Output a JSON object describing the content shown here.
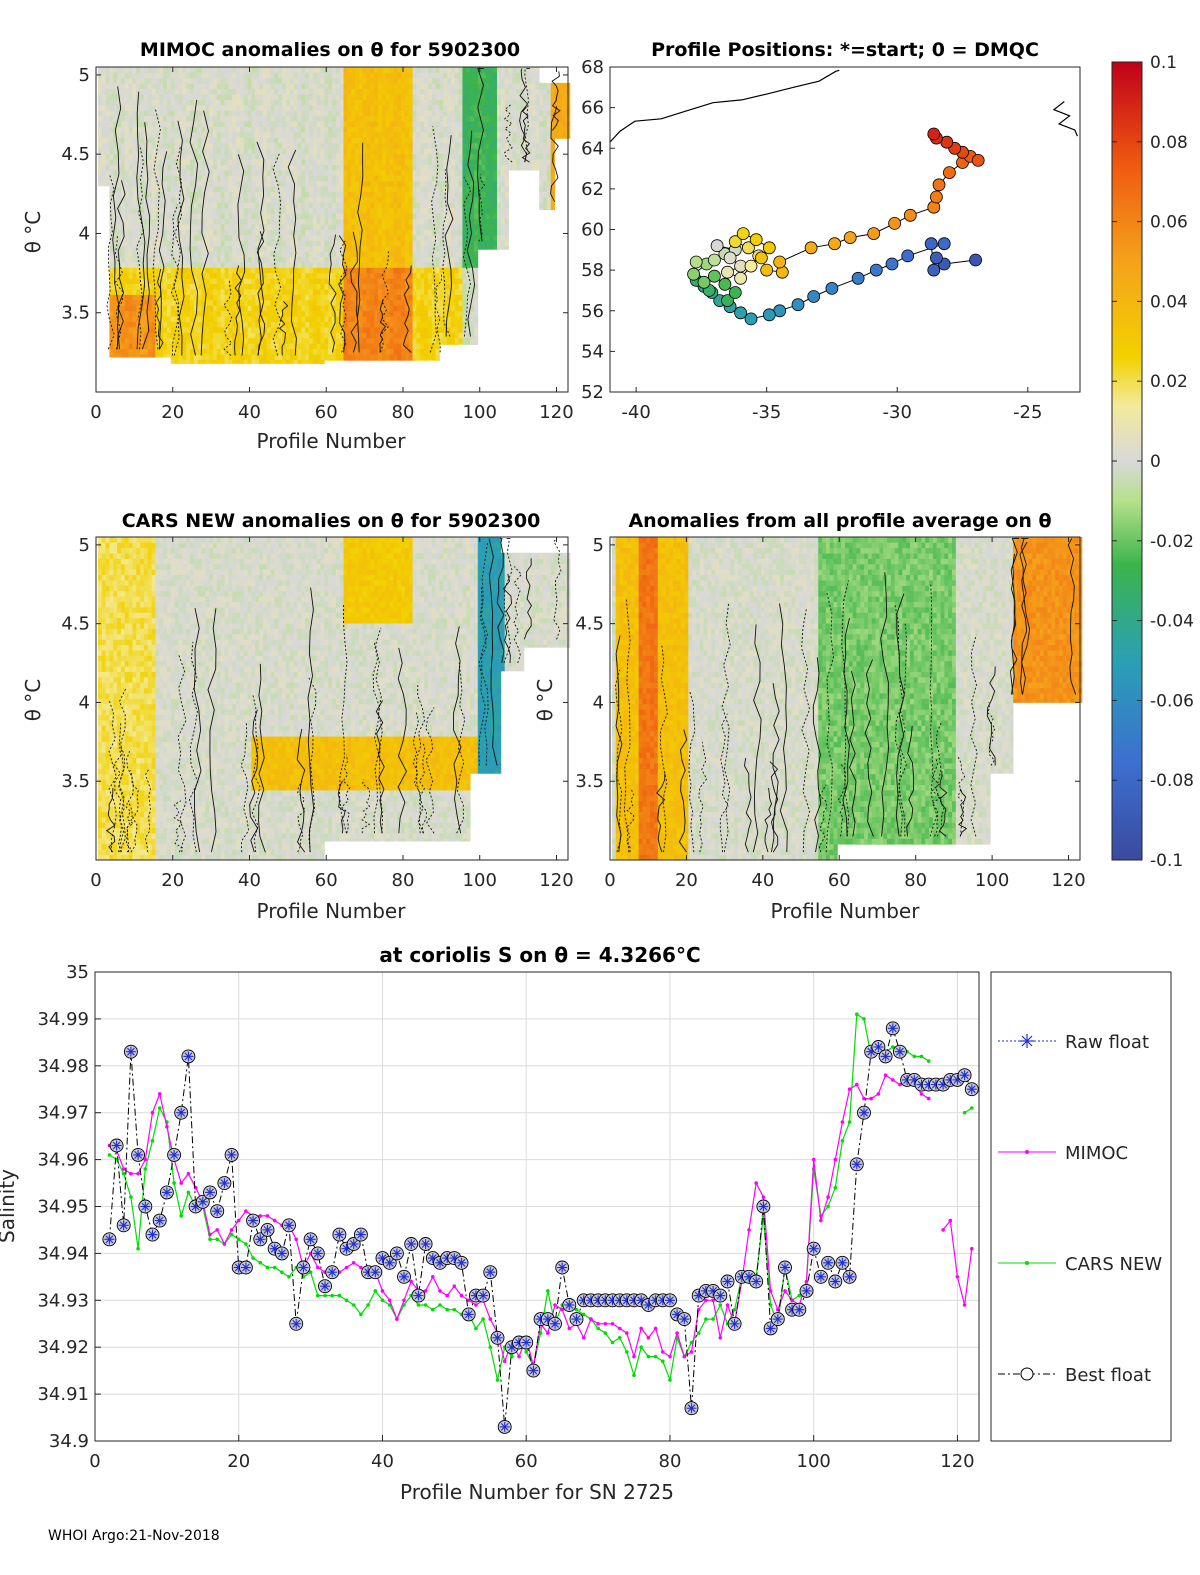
{
  "footer": "WHOI Argo:21-Nov-2018",
  "panel_mimoc": {
    "title": "MIMOC anomalies on θ  for 5902300",
    "xlabel": "Profile Number",
    "ylabel": "θ °C",
    "xticks": [
      0,
      20,
      40,
      60,
      80,
      100,
      120
    ],
    "yticks": [
      3.5,
      4,
      4.5,
      5
    ],
    "xlim": [
      0,
      123
    ],
    "ylim": [
      3.0,
      5.05
    ]
  },
  "panel_positions": {
    "title": "Profile Positions: *=start; 0 = DMQC",
    "xticks": [
      -40,
      -35,
      -30,
      -25
    ],
    "yticks": [
      52,
      54,
      56,
      58,
      60,
      62,
      64,
      66,
      68
    ],
    "xlim": [
      -41,
      -23
    ],
    "ylim": [
      52,
      68
    ]
  },
  "panel_cars": {
    "title": "CARS NEW anomalies on θ for 5902300",
    "xlabel": "Profile Number",
    "ylabel": "θ °C",
    "xticks": [
      0,
      20,
      40,
      60,
      80,
      100,
      120
    ],
    "yticks": [
      3.5,
      4,
      4.5,
      5
    ],
    "xlim": [
      0,
      123
    ],
    "ylim": [
      3.0,
      5.05
    ]
  },
  "panel_allavg": {
    "title": "Anomalies from all profile average on θ",
    "xlabel": "Profile Number",
    "ylabel": "θ °C",
    "xticks": [
      0,
      20,
      40,
      60,
      80,
      100,
      120
    ],
    "yticks": [
      3.5,
      4,
      4.5,
      5
    ],
    "xlim": [
      0,
      123
    ],
    "ylim": [
      3.0,
      5.05
    ]
  },
  "colorbar": {
    "ticks": [
      "0.1",
      "0.08",
      "0.06",
      "0.04",
      "0.02",
      "0",
      "-0.02",
      "-0.04",
      "-0.06",
      "-0.08",
      "-0.1"
    ],
    "range": [
      -0.1,
      0.1
    ]
  },
  "chart_data": {
    "type": "line",
    "title": "at coriolis S on θ = 4.3266°C",
    "xlabel": "Profile Number for SN 2725",
    "ylabel": "Salinity",
    "xlim": [
      0,
      123
    ],
    "ylim": [
      34.9,
      35
    ],
    "xticks": [
      0,
      20,
      40,
      60,
      80,
      100,
      120
    ],
    "yticks": [
      "34.9",
      "34.91",
      "34.92",
      "34.93",
      "34.94",
      "34.95",
      "34.96",
      "34.97",
      "34.98",
      "34.99",
      "35"
    ],
    "legend": [
      "Raw float",
      "MIMOC",
      "CARS NEW",
      "Best float"
    ],
    "series": [
      {
        "name": "Best float",
        "color": "#000000",
        "x": [
          2,
          3,
          4,
          5,
          6,
          7,
          8,
          9,
          10,
          11,
          12,
          13,
          14,
          15,
          16,
          17,
          18,
          19,
          20,
          21,
          22,
          23,
          24,
          25,
          26,
          27,
          28,
          29,
          30,
          31,
          32,
          33,
          34,
          35,
          36,
          37,
          38,
          39,
          40,
          41,
          42,
          43,
          44,
          45,
          46,
          47,
          48,
          49,
          50,
          51,
          52,
          53,
          54,
          55,
          56,
          57,
          58,
          59,
          60,
          61,
          62,
          63,
          64,
          65,
          66,
          67,
          68,
          69,
          70,
          71,
          72,
          73,
          74,
          75,
          76,
          77,
          78,
          79,
          80,
          81,
          82,
          83,
          84,
          85,
          86,
          87,
          88,
          89,
          90,
          91,
          92,
          93,
          94,
          95,
          96,
          97,
          98,
          99,
          100,
          101,
          102,
          103,
          104,
          105,
          106,
          107,
          108,
          109,
          110,
          111,
          112,
          113,
          114,
          115,
          116,
          117,
          118,
          119,
          120,
          121,
          122
        ],
        "values": [
          34.943,
          34.963,
          34.946,
          34.983,
          34.961,
          34.95,
          34.944,
          34.947,
          34.953,
          34.961,
          34.97,
          34.982,
          34.95,
          34.951,
          34.953,
          34.949,
          34.955,
          34.961,
          34.937,
          34.937,
          34.947,
          34.943,
          34.945,
          34.941,
          34.94,
          34.946,
          34.925,
          34.937,
          34.943,
          34.94,
          34.933,
          34.936,
          34.944,
          34.941,
          34.942,
          34.944,
          34.936,
          34.936,
          34.939,
          34.938,
          34.94,
          34.935,
          34.942,
          34.931,
          34.942,
          34.939,
          34.938,
          34.939,
          34.939,
          34.938,
          34.927,
          34.931,
          34.931,
          34.936,
          34.922,
          34.903,
          34.92,
          34.921,
          34.921,
          34.915,
          34.926,
          34.926,
          34.925,
          34.937,
          34.929,
          34.926,
          34.93,
          34.93,
          34.93,
          34.93,
          34.93,
          34.93,
          34.93,
          34.93,
          34.93,
          34.929,
          34.93,
          34.93,
          34.93,
          34.927,
          34.926,
          34.907,
          34.931,
          34.932,
          34.932,
          34.931,
          34.934,
          34.925,
          34.935,
          34.935,
          34.934,
          34.95,
          34.924,
          34.926,
          34.937,
          34.928,
          34.928,
          34.932,
          34.941,
          34.935,
          34.938,
          34.934,
          34.938,
          34.935,
          34.959,
          34.97,
          34.983,
          34.984,
          34.982,
          34.988,
          34.983,
          34.977,
          34.977,
          34.976,
          34.976,
          34.976,
          34.976,
          34.977,
          34.977,
          34.978,
          34.975
        ]
      },
      {
        "name": "MIMOC",
        "color": "#ff00ff",
        "x": [
          2,
          3,
          4,
          5,
          6,
          7,
          8,
          9,
          10,
          11,
          12,
          13,
          14,
          15,
          16,
          17,
          18,
          19,
          20,
          21,
          22,
          23,
          24,
          25,
          26,
          27,
          28,
          29,
          30,
          31,
          32,
          33,
          34,
          35,
          36,
          37,
          38,
          39,
          40,
          41,
          42,
          43,
          44,
          45,
          46,
          47,
          48,
          49,
          50,
          51,
          52,
          53,
          54,
          55,
          56,
          57,
          58,
          59,
          60,
          61,
          62,
          63,
          64,
          65,
          66,
          67,
          68,
          69,
          70,
          71,
          72,
          73,
          74,
          75,
          76,
          77,
          78,
          79,
          80,
          81,
          82,
          83,
          84,
          85,
          86,
          87,
          88,
          89,
          90,
          91,
          92,
          93,
          94,
          95,
          96,
          97,
          98,
          99,
          100,
          101,
          102,
          103,
          104,
          105,
          106,
          107,
          108,
          109,
          110,
          111,
          112,
          113,
          114,
          115,
          116
        ],
        "values": [
          34.963,
          34.962,
          34.958,
          34.957,
          34.957,
          34.96,
          34.97,
          34.974,
          34.967,
          34.96,
          34.955,
          34.957,
          34.954,
          34.951,
          34.944,
          34.945,
          34.942,
          34.945,
          34.947,
          34.949,
          34.948,
          34.948,
          34.948,
          34.947,
          34.946,
          34.946,
          34.943,
          34.937,
          34.94,
          34.937,
          34.936,
          34.936,
          34.936,
          34.937,
          34.938,
          34.937,
          34.935,
          34.936,
          34.932,
          34.93,
          34.926,
          34.93,
          34.934,
          34.932,
          34.932,
          34.935,
          34.932,
          34.931,
          34.933,
          34.931,
          34.93,
          34.929,
          34.93,
          34.926,
          34.923,
          34.917,
          34.921,
          34.918,
          34.922,
          34.916,
          34.925,
          34.923,
          34.929,
          34.928,
          34.924,
          34.925,
          34.922,
          34.926,
          34.925,
          34.925,
          34.925,
          34.924,
          34.923,
          34.918,
          34.924,
          34.922,
          34.924,
          34.919,
          34.918,
          34.923,
          34.918,
          34.919,
          34.928,
          34.93,
          34.93,
          34.922,
          34.929,
          34.925,
          34.934,
          34.945,
          34.955,
          34.952,
          34.932,
          34.928,
          34.932,
          34.93,
          34.929,
          34.934,
          34.96,
          34.947,
          34.952,
          34.96,
          34.968,
          34.975,
          34.976,
          34.973,
          34.973,
          34.974,
          34.978,
          34.977,
          34.976,
          34.976,
          34.976,
          34.974,
          34.973
        ]
      },
      {
        "name": "MIMOC-tail",
        "color": "#ff00ff",
        "x": [
          118,
          119,
          120,
          121,
          122
        ],
        "values": [
          34.945,
          34.947,
          34.935,
          34.929,
          34.941
        ]
      },
      {
        "name": "CARS NEW",
        "color": "#00dd00",
        "x": [
          2,
          3,
          4,
          5,
          6,
          7,
          8,
          9,
          10,
          11,
          12,
          13,
          14,
          15,
          16,
          17,
          18,
          19,
          20,
          21,
          22,
          23,
          24,
          25,
          26,
          27,
          28,
          29,
          30,
          31,
          32,
          33,
          34,
          35,
          36,
          37,
          38,
          39,
          40,
          41,
          42,
          43,
          44,
          45,
          46,
          47,
          48,
          49,
          50,
          51,
          52,
          53,
          54,
          55,
          56,
          57,
          58,
          59,
          60,
          61,
          62,
          63,
          64,
          65,
          66,
          67,
          68,
          69,
          70,
          71,
          72,
          73,
          74,
          75,
          76,
          77,
          78,
          79,
          80,
          81,
          82,
          83,
          84,
          85,
          86,
          87,
          88,
          89,
          90,
          91,
          92,
          93,
          94,
          95,
          96,
          97,
          98,
          99,
          100,
          101,
          102,
          103,
          104,
          105,
          106,
          107,
          108,
          109,
          110,
          111,
          112,
          113,
          114,
          115,
          116
        ],
        "values": [
          34.961,
          34.96,
          34.957,
          34.952,
          34.941,
          34.958,
          34.964,
          34.971,
          34.968,
          34.955,
          34.948,
          34.953,
          34.95,
          34.95,
          34.943,
          34.943,
          34.942,
          34.944,
          34.943,
          34.942,
          34.939,
          34.938,
          34.937,
          34.937,
          34.936,
          34.935,
          34.937,
          34.935,
          34.936,
          34.931,
          34.931,
          34.931,
          34.931,
          34.93,
          34.929,
          34.927,
          34.929,
          34.932,
          34.93,
          34.929,
          34.926,
          34.929,
          34.931,
          34.929,
          34.929,
          34.928,
          34.929,
          34.928,
          34.928,
          34.927,
          34.927,
          34.924,
          34.926,
          34.92,
          34.913,
          34.92,
          34.918,
          34.922,
          34.919,
          34.916,
          34.923,
          34.932,
          34.925,
          34.929,
          34.93,
          34.928,
          34.927,
          34.926,
          34.924,
          34.923,
          34.921,
          34.922,
          34.919,
          34.914,
          34.92,
          34.918,
          34.918,
          34.917,
          34.913,
          34.922,
          34.918,
          34.921,
          34.923,
          34.926,
          34.926,
          34.929,
          34.925,
          34.928,
          34.935,
          34.935,
          34.935,
          34.948,
          34.929,
          34.925,
          34.937,
          34.93,
          34.931,
          34.934,
          34.958,
          34.948,
          34.95,
          34.954,
          34.964,
          34.968,
          34.991,
          34.99,
          34.982,
          34.984,
          34.983,
          34.984,
          34.984,
          34.983,
          34.982,
          34.982,
          34.981
        ]
      },
      {
        "name": "CARS NEW-tail",
        "color": "#00dd00",
        "x": [
          121,
          122
        ],
        "values": [
          34.97,
          34.971
        ]
      }
    ]
  }
}
